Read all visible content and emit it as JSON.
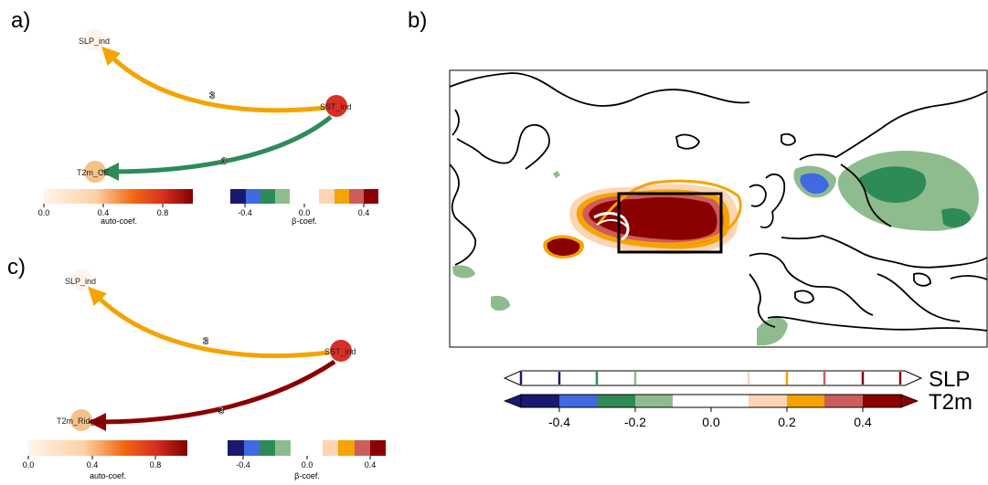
{
  "panels": {
    "a": {
      "label": "a)",
      "nodes": {
        "slp": "SLP_ind",
        "sst": "SST_ind",
        "t2m": "T2m_CE"
      },
      "edge_lags": {
        "sst_to_slp": "3",
        "sst_to_t2m": "3"
      },
      "auto_cbar": {
        "ticks": [
          "0.0",
          "0.4",
          "0.8"
        ],
        "label": "auto-coef."
      },
      "beta_cbar": {
        "ticks": [
          "-0.4",
          "0.0",
          "0.4"
        ],
        "label": "β-coef."
      }
    },
    "b": {
      "label": "b)",
      "cbar_labels": {
        "slp": "SLP",
        "t2m": "T2m"
      },
      "ticks": [
        "-0.4",
        "-0.2",
        "0.0",
        "0.2",
        "0.4"
      ]
    },
    "c": {
      "label": "c)",
      "nodes": {
        "slp": "SLP_ind",
        "sst": "SST_ind",
        "t2m": "T2m_Ridge"
      },
      "edge_lags": {
        "sst_to_slp": "3",
        "sst_to_t2m": "3"
      },
      "auto_cbar": {
        "ticks": [
          "0.0",
          "0.4",
          "0.8"
        ],
        "label": "auto-coef."
      },
      "beta_cbar": {
        "ticks": [
          "-0.4",
          "0.0",
          "0.4"
        ],
        "label": "β-coef."
      }
    }
  },
  "colors": {
    "orange_edge": "#f5a300",
    "green_edge": "#2e8b57",
    "darkred_edge": "#8b0000",
    "sst_node": "#d73027",
    "t2m_node": "#f6c28b",
    "slp_node": "#fff5eb"
  }
}
